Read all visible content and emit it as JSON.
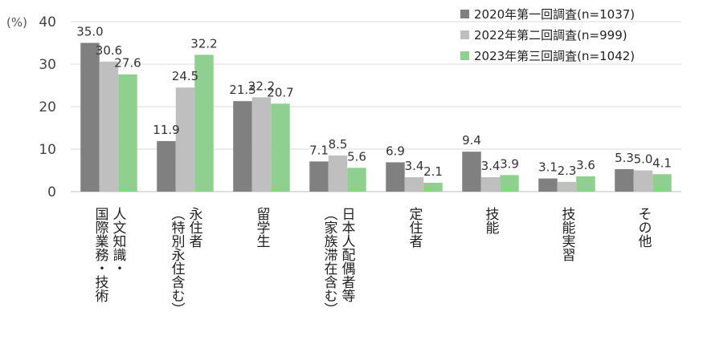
{
  "chart_data": {
    "type": "bar",
    "ylabel": "(%)",
    "ylim": [
      0,
      40
    ],
    "yticks": [
      0,
      10,
      20,
      30,
      40
    ],
    "grid": true,
    "legend_position": "top-right",
    "categories": [
      [
        "人文知識・",
        "国際業務・技術"
      ],
      [
        "永住者",
        "（特別永住含む）"
      ],
      [
        "留学生"
      ],
      [
        "日本人配偶者等",
        "（家族滞在含む）"
      ],
      [
        "定住者"
      ],
      [
        "技能"
      ],
      [
        "技能実習"
      ],
      [
        "その他"
      ]
    ],
    "series": [
      {
        "name": "2020年第一回調査(n=1037)",
        "color": "#808080",
        "values": [
          35.0,
          11.9,
          21.3,
          7.1,
          6.9,
          9.4,
          3.1,
          5.3
        ],
        "labels": [
          "35.0",
          "11.9",
          "21.3",
          "7.1",
          "6.9",
          "9.4",
          "3.1",
          "5.3"
        ]
      },
      {
        "name": "2022年第二回調査(n=999)",
        "color": "#bfbfbf",
        "values": [
          30.6,
          24.5,
          22.2,
          8.5,
          3.4,
          3.4,
          2.3,
          5.0
        ],
        "labels": [
          "30.6",
          "24.5",
          "22.2",
          "8.5",
          "3.4",
          "3.4",
          "2.3",
          "5.0"
        ]
      },
      {
        "name": "2023年第三回調査(n=1042)",
        "color": "#8fcf8f",
        "values": [
          27.6,
          32.2,
          20.7,
          5.6,
          2.1,
          3.9,
          3.6,
          4.1
        ],
        "labels": [
          "27.6",
          "32.2",
          "20.7",
          "5.6",
          "2.1",
          "3.9",
          "3.6",
          "4.1"
        ]
      }
    ]
  }
}
